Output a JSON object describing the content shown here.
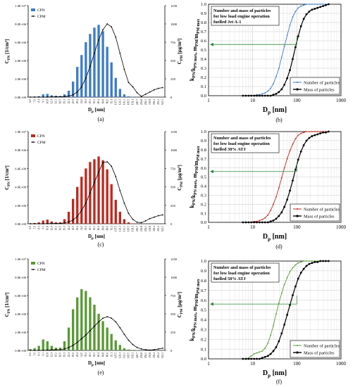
{
  "palette": {
    "a": "#3d7cc9",
    "c": "#c0281e",
    "e": "#5a9a35",
    "black": "#000000",
    "guide": "#2e8b3a"
  },
  "histogram_panels": [
    {
      "id": "a",
      "color_key": "a",
      "legend_bar": "CPN",
      "legend_line": "CPM",
      "label": "(a)",
      "y_left_label": "C",
      "y_left_sub": "PN",
      "y_left_unit": " [1/cm³]",
      "y_right_label": "C",
      "y_right_sub": "PM",
      "y_right_unit": " [μg/m³]",
      "x_label": "D",
      "x_sub": "p",
      "x_unit": " [nm]",
      "left_ticks": [
        "0.0E+00",
        "2.0E+06",
        "4.0E+06",
        "6.0E+06",
        "8.0E+06",
        "1.0E+07"
      ],
      "right_ticks": [
        "0",
        "250",
        "500",
        "750",
        "1000",
        "1250"
      ]
    },
    {
      "id": "c",
      "color_key": "c",
      "legend_bar": "CPN",
      "legend_line": "CPM",
      "label": "(c)",
      "y_left_label": "C",
      "y_left_sub": "PN",
      "y_left_unit": " [1/cm³]",
      "y_right_label": "C",
      "y_right_sub": "PM",
      "y_right_unit": " [μg/m³]",
      "x_label": "D",
      "x_sub": "p",
      "x_unit": " [nm]",
      "left_ticks": [
        "0.0E+00",
        "2.0E+06",
        "4.0E+06",
        "6.0E+06",
        "8.0E+06",
        "1.0E+07"
      ],
      "right_ticks": [
        "0",
        "250",
        "500",
        "750",
        "1000",
        "1250"
      ]
    },
    {
      "id": "e",
      "color_key": "e",
      "legend_bar": "CPN",
      "legend_line": "CPM",
      "label": "(e)",
      "y_left_label": "C",
      "y_left_sub": "PN",
      "y_left_unit": " [1/cm³]",
      "y_right_label": "C",
      "y_right_sub": "PM",
      "y_right_unit": " [μg/m³]",
      "x_label": "D",
      "x_sub": "p",
      "x_unit": " [nm]",
      "left_ticks": [
        "0.0E+00",
        "2.0E+06",
        "4.0E+06",
        "6.0E+06",
        "8.0E+06",
        "1.0E+07"
      ],
      "right_ticks": [
        "0",
        "250",
        "500",
        "750",
        "1000",
        "1250"
      ]
    }
  ],
  "cumulative_panels": [
    {
      "id": "b",
      "color_key": "a",
      "label": "(b)",
      "title_lines": [
        "Number and mass of particles",
        "for low load engine operation",
        "fuelled Jet A-1"
      ],
      "legend_number": "Number of particles",
      "legend_mass": "Mass of particles",
      "y_label": "k_PN/k_PN max, m_PM/m_PM max",
      "x_label": "D",
      "x_sub": "p",
      "x_unit": " [nm]",
      "y_ticks": [
        "0.0",
        "0.1",
        "0.2",
        "0.3",
        "0.4",
        "0.5",
        "0.6",
        "0.7",
        "0.8",
        "0.9",
        "1.0"
      ],
      "x_ticks": [
        "1",
        "10",
        "100",
        "1000"
      ]
    },
    {
      "id": "d",
      "color_key": "c",
      "label": "(d)",
      "title_lines": [
        "Number and mass of particles",
        "for low load engine operation",
        "fuelled 30% ATJ"
      ],
      "legend_number": "Number of particles",
      "legend_mass": "Mass of particles",
      "y_label": "k_PN/k_PN max, m_PM/m_PM max",
      "x_label": "D",
      "x_sub": "p",
      "x_unit": " [nm]",
      "y_ticks": [
        "0.0",
        "0.1",
        "0.2",
        "0.3",
        "0.4",
        "0.5",
        "0.6",
        "0.7",
        "0.8",
        "0.9",
        "1.0"
      ],
      "x_ticks": [
        "1",
        "10",
        "100",
        "1000"
      ]
    },
    {
      "id": "f",
      "color_key": "e",
      "label": "(f)",
      "title_lines": [
        "Number and mass of particles",
        "for low load engine operation",
        "fuelled 50% ATJ"
      ],
      "legend_number": "Number of particles",
      "legend_mass": "Mass of particles",
      "y_label": "k_PN/k_PN max, m_PM/m_PM max",
      "x_label": "D",
      "x_sub": "p",
      "x_unit": " [nm]",
      "y_ticks": [
        "0.0",
        "0.1",
        "0.2",
        "0.3",
        "0.4",
        "0.5",
        "0.6",
        "0.7",
        "0.8",
        "0.9",
        "1.0"
      ],
      "x_ticks": [
        "1",
        "10",
        "100",
        "1000"
      ]
    }
  ],
  "chart_data": [
    {
      "type": "bar",
      "panel": "a",
      "ylim": [
        0,
        10000000
      ],
      "y2lim": [
        0,
        1250
      ],
      "categories": [
        "6.0",
        "7.0",
        "8.1",
        "9.3",
        "10.8",
        "12.4",
        "14.3",
        "16.5",
        "19.1",
        "22.1",
        "25.5",
        "29.4",
        "34.0",
        "39.2",
        "45.3",
        "52.3",
        "60.4",
        "69.8",
        "80.6",
        "93.1",
        "107.5",
        "124.1",
        "143.3",
        "165.5",
        "191.1",
        "220.7",
        "254.8",
        "294.3",
        "339.8",
        "392.4",
        "453.2",
        "523.3"
      ],
      "series": [
        {
          "name": "CPN",
          "values": [
            50000,
            60000,
            100000,
            300000,
            350000,
            200000,
            150000,
            120000,
            300000,
            700000,
            1700000,
            3300000,
            4600000,
            6000000,
            6900000,
            7600000,
            7900000,
            7200000,
            5500000,
            3800000,
            2100000,
            900000,
            300000,
            80000,
            20000,
            5000,
            0,
            0,
            0,
            0,
            0,
            0
          ]
        },
        {
          "name": "CPM",
          "values": [
            0,
            0,
            0,
            0,
            2,
            3,
            4,
            5,
            8,
            15,
            30,
            70,
            140,
            260,
            420,
            600,
            780,
            920,
            1000,
            960,
            820,
            600,
            380,
            200,
            140,
            60,
            10,
            40,
            70,
            100,
            120,
            130
          ]
        }
      ]
    },
    {
      "type": "bar",
      "panel": "c",
      "ylim": [
        0,
        10000000
      ],
      "y2lim": [
        0,
        1250
      ],
      "categories": [
        "6.0",
        "7.0",
        "8.1",
        "9.3",
        "10.8",
        "12.4",
        "14.3",
        "16.5",
        "19.1",
        "22.1",
        "25.5",
        "29.4",
        "34.0",
        "39.2",
        "45.3",
        "52.3",
        "60.4",
        "69.8",
        "80.6",
        "93.1",
        "107.5",
        "124.1",
        "143.3",
        "165.5",
        "191.1",
        "220.7",
        "254.8",
        "294.3",
        "339.8",
        "392.4",
        "453.2",
        "523.3"
      ],
      "series": [
        {
          "name": "CPN",
          "values": [
            50000,
            80000,
            150000,
            350000,
            450000,
            250000,
            150000,
            150000,
            500000,
            1300000,
            2700000,
            4000000,
            5100000,
            6000000,
            6700000,
            7000000,
            7300000,
            6900000,
            5900000,
            4300000,
            2600000,
            1300000,
            500000,
            150000,
            40000,
            10000,
            0,
            0,
            0,
            0,
            0,
            0
          ]
        },
        {
          "name": "CPM",
          "values": [
            0,
            0,
            0,
            0,
            2,
            3,
            4,
            6,
            12,
            25,
            50,
            100,
            180,
            280,
            420,
            560,
            700,
            830,
            840,
            780,
            640,
            450,
            280,
            140,
            60,
            20,
            15,
            40,
            70,
            90,
            110,
            120
          ]
        }
      ]
    },
    {
      "type": "bar",
      "panel": "e",
      "ylim": [
        0,
        10000000
      ],
      "y2lim": [
        0,
        1250
      ],
      "categories": [
        "6.0",
        "7.0",
        "8.1",
        "9.3",
        "10.8",
        "12.4",
        "14.3",
        "16.5",
        "19.1",
        "22.1",
        "25.5",
        "29.4",
        "34.0",
        "39.2",
        "45.3",
        "52.3",
        "60.4",
        "69.8",
        "80.6",
        "93.1",
        "107.5",
        "124.1",
        "143.3",
        "165.5",
        "191.1",
        "220.7",
        "254.8",
        "294.3",
        "339.8",
        "392.4",
        "453.2",
        "523.3"
      ],
      "series": [
        {
          "name": "CPN",
          "values": [
            150000,
            250000,
            500000,
            1200000,
            1000000,
            500000,
            300000,
            300000,
            1000000,
            2500000,
            4500000,
            5800000,
            6700000,
            6500000,
            5800000,
            5000000,
            4000000,
            3200000,
            2500000,
            1800000,
            1100000,
            600000,
            250000,
            100000,
            50000,
            30000,
            20000,
            10000,
            0,
            0,
            0,
            0
          ]
        },
        {
          "name": "CPM",
          "values": [
            0,
            0,
            0,
            0,
            5,
            8,
            10,
            12,
            20,
            40,
            70,
            110,
            160,
            210,
            270,
            330,
            390,
            440,
            460,
            440,
            390,
            310,
            220,
            140,
            80,
            40,
            20,
            10,
            5,
            10,
            20,
            30
          ]
        }
      ]
    },
    {
      "type": "line",
      "panel": "b",
      "xscale": "log",
      "xlim": [
        1,
        1000
      ],
      "ylim": [
        0,
        1
      ],
      "series": [
        {
          "name": "Number of particles",
          "x": [
            6,
            7,
            8.1,
            9.3,
            10.8,
            12.4,
            14.3,
            16.5,
            19.1,
            22.1,
            25.5,
            29.4,
            34,
            39.2,
            45.3,
            52.3,
            60.4,
            69.8,
            80.6,
            93.1,
            107.5,
            124.1,
            143.3,
            165.5,
            191.1,
            220.7,
            254.8,
            294.3,
            339.8,
            392.4,
            453.2,
            523.3
          ],
          "y": [
            0,
            0,
            0,
            0,
            0,
            0.01,
            0.01,
            0.02,
            0.03,
            0.05,
            0.08,
            0.13,
            0.21,
            0.3,
            0.42,
            0.54,
            0.66,
            0.77,
            0.86,
            0.92,
            0.96,
            0.98,
            0.99,
            1,
            1,
            1,
            1,
            1,
            1,
            1,
            1,
            1
          ]
        },
        {
          "name": "Mass of particles",
          "x": [
            6,
            7,
            8.1,
            9.3,
            10.8,
            12.4,
            14.3,
            16.5,
            19.1,
            22.1,
            25.5,
            29.4,
            34,
            39.2,
            45.3,
            52.3,
            60.4,
            69.8,
            80.6,
            93.1,
            107.5,
            124.1,
            143.3,
            165.5,
            191.1,
            220.7,
            254.8,
            294.3,
            339.8,
            392.4,
            453.2,
            523.3
          ],
          "y": [
            0,
            0,
            0,
            0,
            0,
            0,
            0,
            0,
            0,
            0,
            0,
            0.01,
            0.02,
            0.04,
            0.07,
            0.12,
            0.19,
            0.28,
            0.4,
            0.53,
            0.65,
            0.76,
            0.84,
            0.89,
            0.92,
            0.94,
            0.95,
            0.96,
            0.97,
            0.98,
            0.99,
            1
          ]
        }
      ]
    },
    {
      "type": "line",
      "panel": "d",
      "xscale": "log",
      "xlim": [
        1,
        1000
      ],
      "ylim": [
        0,
        1
      ],
      "series": [
        {
          "name": "Number of particles",
          "x": [
            6,
            7,
            8.1,
            9.3,
            10.8,
            12.4,
            14.3,
            16.5,
            19.1,
            22.1,
            25.5,
            29.4,
            34,
            39.2,
            45.3,
            52.3,
            60.4,
            69.8,
            80.6,
            93.1,
            107.5,
            124.1,
            143.3,
            165.5,
            191.1,
            220.7,
            254.8,
            294.3,
            339.8,
            392.4,
            453.2,
            523.3
          ],
          "y": [
            0,
            0,
            0,
            0,
            0.01,
            0.01,
            0.02,
            0.03,
            0.05,
            0.08,
            0.13,
            0.2,
            0.28,
            0.38,
            0.49,
            0.6,
            0.7,
            0.79,
            0.86,
            0.92,
            0.96,
            0.98,
            0.99,
            1,
            1,
            1,
            1,
            1,
            1,
            1,
            1,
            1
          ]
        },
        {
          "name": "Mass of particles",
          "x": [
            6,
            7,
            8.1,
            9.3,
            10.8,
            12.4,
            14.3,
            16.5,
            19.1,
            22.1,
            25.5,
            29.4,
            34,
            39.2,
            45.3,
            52.3,
            60.4,
            69.8,
            80.6,
            93.1,
            107.5,
            124.1,
            143.3,
            165.5,
            191.1,
            220.7,
            254.8,
            294.3,
            339.8,
            392.4,
            453.2,
            523.3
          ],
          "y": [
            0,
            0,
            0,
            0,
            0,
            0,
            0,
            0,
            0,
            0,
            0.01,
            0.02,
            0.04,
            0.07,
            0.11,
            0.17,
            0.25,
            0.35,
            0.46,
            0.58,
            0.69,
            0.78,
            0.85,
            0.9,
            0.93,
            0.95,
            0.96,
            0.97,
            0.98,
            0.99,
            0.99,
            1
          ]
        }
      ]
    },
    {
      "type": "line",
      "panel": "f",
      "xscale": "log",
      "xlim": [
        1,
        1000
      ],
      "ylim": [
        0,
        1
      ],
      "series": [
        {
          "name": "Number of particles",
          "x": [
            6,
            7,
            8.1,
            9.3,
            10.8,
            12.4,
            14.3,
            16.5,
            19.1,
            22.1,
            25.5,
            29.4,
            34,
            39.2,
            45.3,
            52.3,
            60.4,
            69.8,
            80.6,
            93.1,
            107.5,
            124.1,
            143.3,
            165.5,
            191.1,
            220.7,
            254.8,
            294.3,
            339.8,
            392.4,
            453.2,
            523.3
          ],
          "y": [
            0,
            0,
            0.01,
            0.03,
            0.05,
            0.06,
            0.07,
            0.08,
            0.11,
            0.16,
            0.24,
            0.34,
            0.46,
            0.57,
            0.67,
            0.76,
            0.83,
            0.89,
            0.93,
            0.96,
            0.98,
            0.99,
            1,
            1,
            1,
            1,
            1,
            1,
            1,
            1,
            1,
            1
          ]
        },
        {
          "name": "Mass of particles",
          "x": [
            6,
            7,
            8.1,
            9.3,
            10.8,
            12.4,
            14.3,
            16.5,
            19.1,
            22.1,
            25.5,
            29.4,
            34,
            39.2,
            45.3,
            52.3,
            60.4,
            69.8,
            80.6,
            93.1,
            107.5,
            124.1,
            143.3,
            165.5,
            191.1,
            220.7,
            254.8,
            294.3,
            339.8,
            392.4,
            453.2,
            523.3
          ],
          "y": [
            0,
            0,
            0,
            0,
            0,
            0,
            0,
            0.01,
            0.02,
            0.03,
            0.05,
            0.08,
            0.12,
            0.18,
            0.26,
            0.35,
            0.45,
            0.55,
            0.65,
            0.74,
            0.82,
            0.88,
            0.92,
            0.95,
            0.97,
            0.98,
            0.99,
            0.99,
            1,
            1,
            1,
            1
          ]
        }
      ]
    }
  ]
}
